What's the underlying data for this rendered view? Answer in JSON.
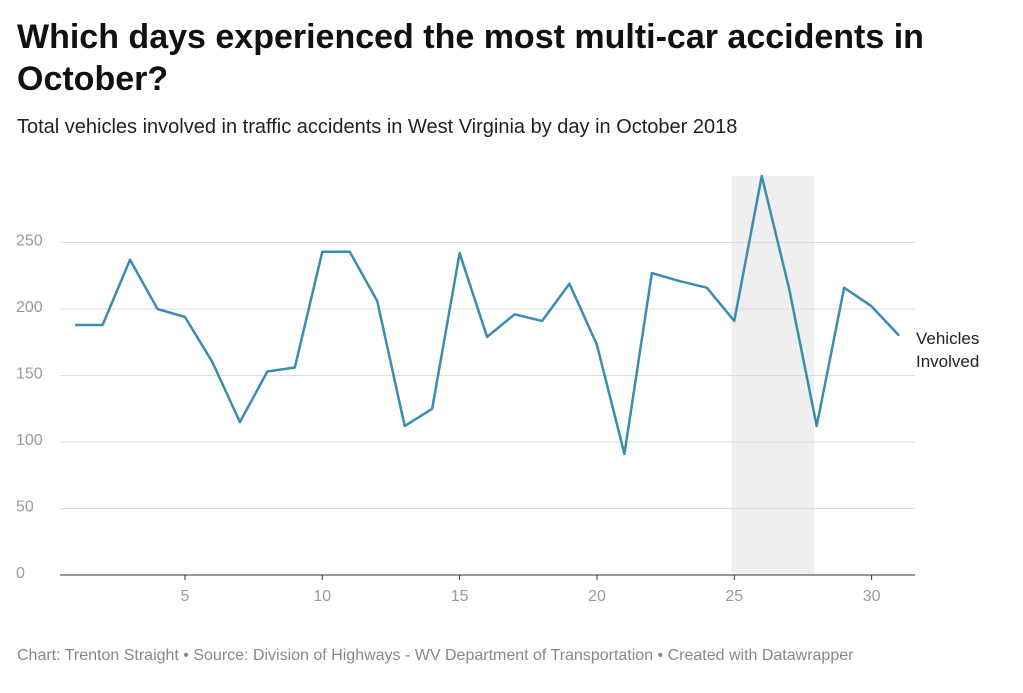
{
  "chart_data": {
    "type": "line",
    "title": "Which days experienced the most multi-car accidents in October?",
    "subtitle": "Total vehicles involved in traffic accidents in West Virginia by day in October 2018",
    "footer": "Chart: Trenton Straight • Source: Division of Highways - WV Department of Transportation • Created with Datawrapper",
    "x": [
      1,
      2,
      3,
      4,
      5,
      6,
      7,
      8,
      9,
      10,
      11,
      12,
      13,
      14,
      15,
      16,
      17,
      18,
      19,
      20,
      21,
      22,
      23,
      24,
      25,
      26,
      27,
      28,
      29,
      30,
      31
    ],
    "series": [
      {
        "name": "Vehicles Involved",
        "color": "#3a8db0",
        "values": [
          188,
          188,
          237,
          200,
          194,
          160,
          115,
          153,
          156,
          243,
          243,
          206,
          112,
          125,
          242,
          179,
          196,
          191,
          219,
          173,
          91,
          227,
          221,
          216,
          191,
          300,
          215,
          112,
          216,
          202,
          180
        ]
      }
    ],
    "xlim": [
      0.45,
      31.58
    ],
    "xticks": [
      5,
      10,
      15,
      20,
      25,
      30
    ],
    "ylim": [
      0,
      300
    ],
    "yticks": [
      0,
      50,
      100,
      150,
      200,
      250
    ],
    "grid": true,
    "highlight_range": [
      24.9,
      27.9
    ],
    "highlight_color": "#efefef"
  }
}
